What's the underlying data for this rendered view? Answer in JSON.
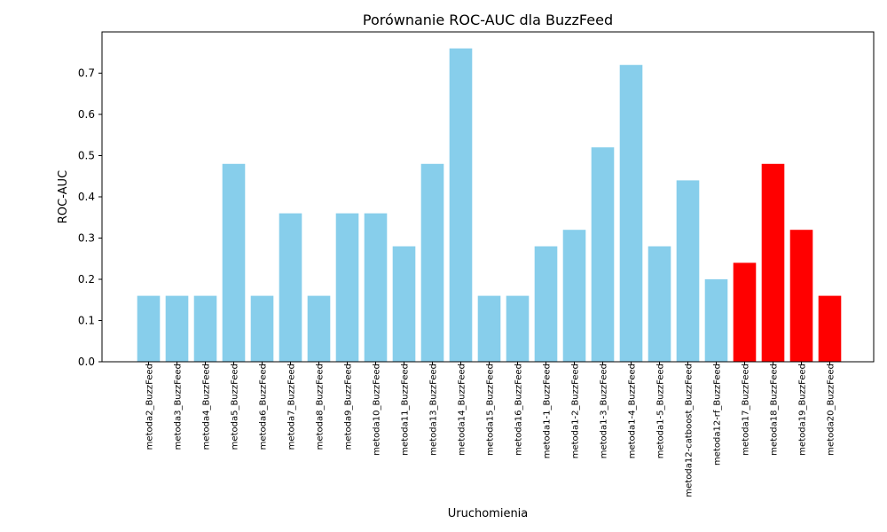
{
  "chart_data": {
    "type": "bar",
    "title": "Porównanie ROC-AUC dla BuzzFeed",
    "xlabel": "Uruchomienia",
    "ylabel": "ROC-AUC",
    "ylim": [
      0,
      0.8
    ],
    "yticks": [
      "0.0",
      "0.1",
      "0.2",
      "0.3",
      "0.4",
      "0.5",
      "0.6",
      "0.7"
    ],
    "grid": false,
    "legend": "none",
    "categories": [
      "metoda2_BuzzFeed",
      "metoda3_BuzzFeed",
      "metoda4_BuzzFeed",
      "metoda5_BuzzFeed",
      "metoda6_BuzzFeed",
      "metoda7_BuzzFeed",
      "metoda8_BuzzFeed",
      "metoda9_BuzzFeed",
      "metoda10_BuzzFeed",
      "metoda11_BuzzFeed",
      "metoda13_BuzzFeed",
      "metoda14_BuzzFeed",
      "metoda15_BuzzFeed",
      "metoda16_BuzzFeed",
      "metoda1-1_BuzzFeed",
      "metoda1-2_BuzzFeed",
      "metoda1-3_BuzzFeed",
      "metoda1-4_BuzzFeed",
      "metoda1-5_BuzzFeed",
      "metoda12-catboost_BuzzFeed",
      "metoda12-rf_BuzzFeed",
      "metoda17_BuzzFeed",
      "metoda18_BuzzFeed",
      "metoda19_BuzzFeed",
      "metoda20_BuzzFeed"
    ],
    "values": [
      0.16,
      0.16,
      0.16,
      0.48,
      0.16,
      0.36,
      0.16,
      0.36,
      0.36,
      0.28,
      0.48,
      0.76,
      0.16,
      0.16,
      0.28,
      0.32,
      0.52,
      0.72,
      0.28,
      0.44,
      0.2,
      0.24,
      0.48,
      0.32,
      0.16
    ],
    "bar_colors": [
      "#87CEEB",
      "#87CEEB",
      "#87CEEB",
      "#87CEEB",
      "#87CEEB",
      "#87CEEB",
      "#87CEEB",
      "#87CEEB",
      "#87CEEB",
      "#87CEEB",
      "#87CEEB",
      "#87CEEB",
      "#87CEEB",
      "#87CEEB",
      "#87CEEB",
      "#87CEEB",
      "#87CEEB",
      "#87CEEB",
      "#87CEEB",
      "#87CEEB",
      "#87CEEB",
      "#FF0000",
      "#FF0000",
      "#FF0000",
      "#FF0000"
    ]
  }
}
